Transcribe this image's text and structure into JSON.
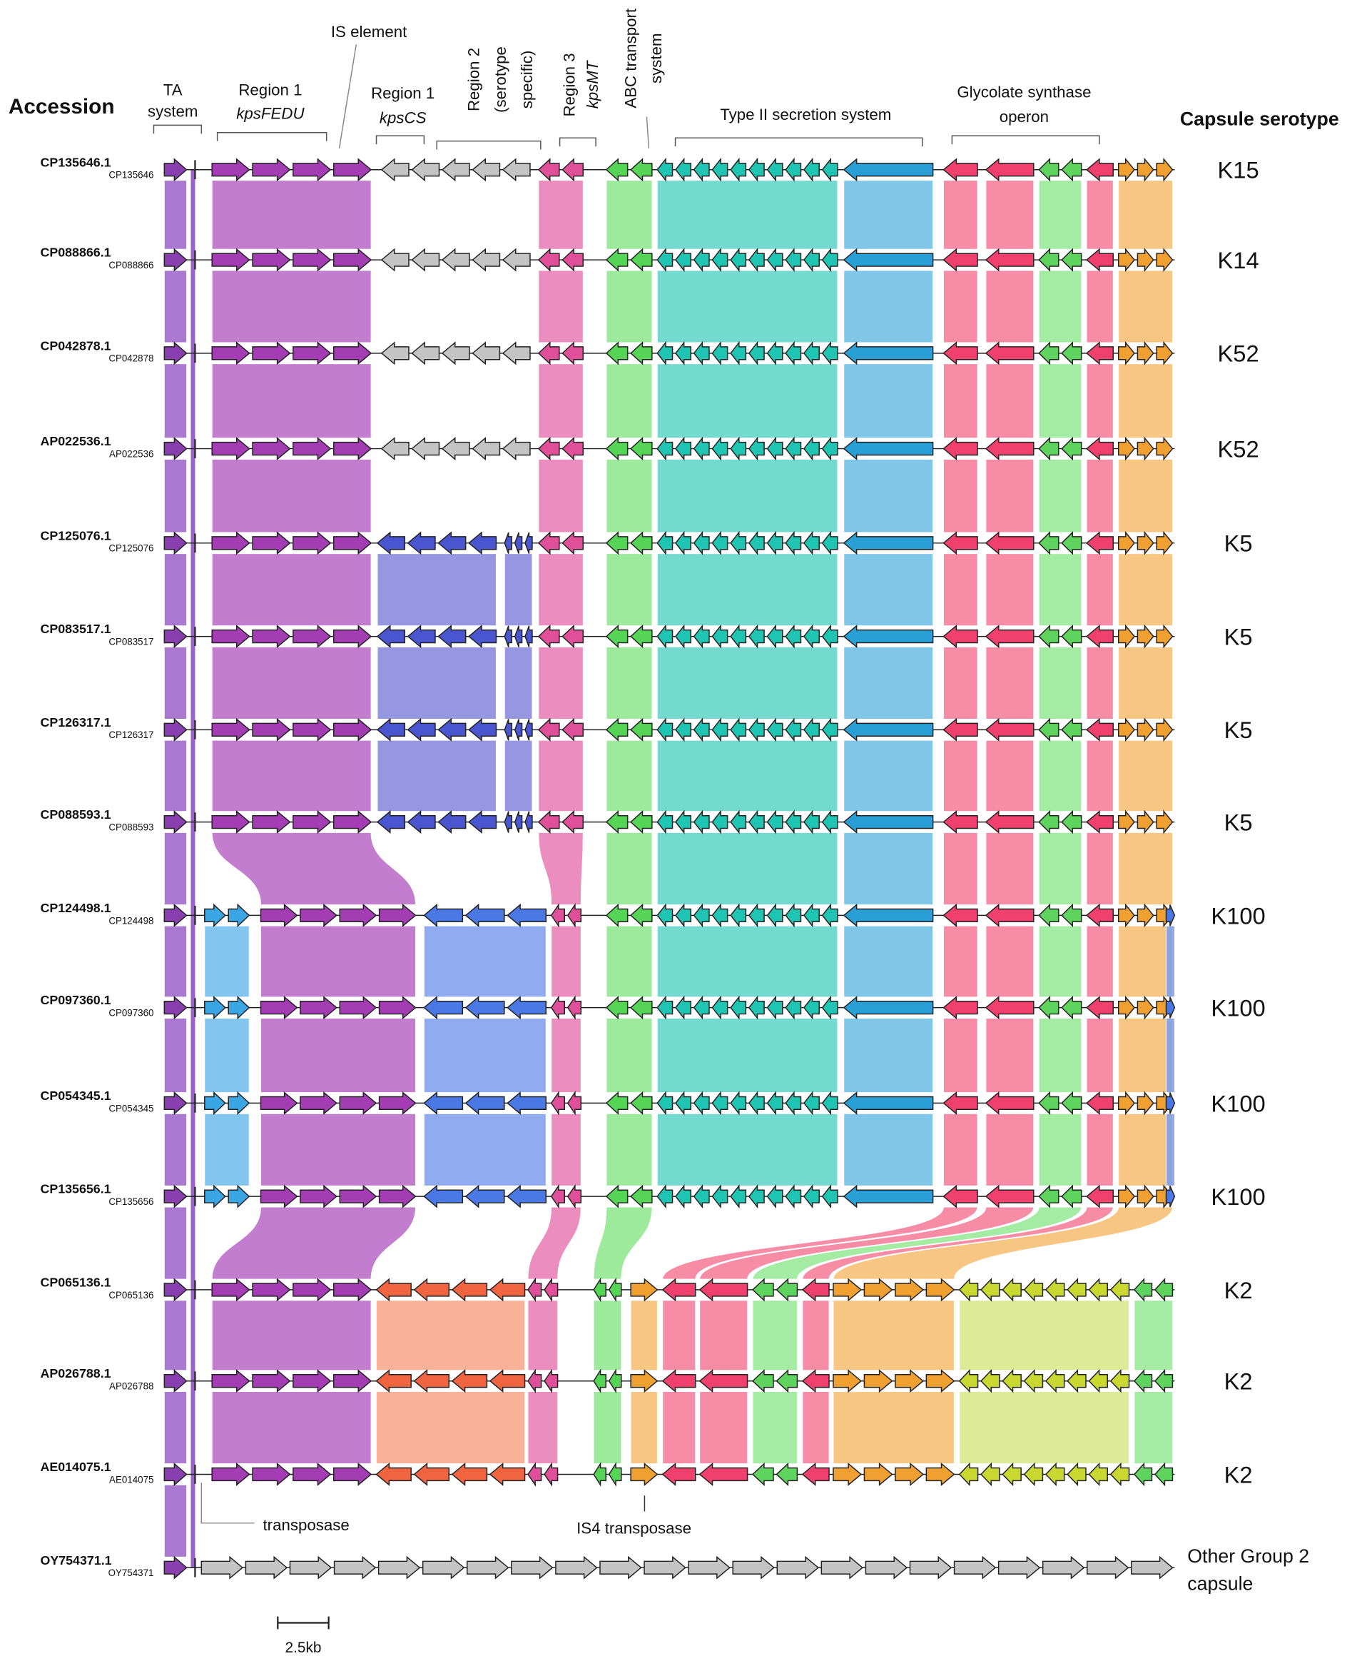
{
  "header": {
    "accession": "Accession",
    "serotype": "Capsule serotype"
  },
  "regions": [
    {
      "lines": [
        "TA",
        "system"
      ]
    },
    {
      "lines": [
        "Region 1",
        "kpsFEDU"
      ]
    },
    {
      "lines": [
        "IS element"
      ]
    },
    {
      "lines": [
        "Region 1",
        "kpsCS"
      ]
    },
    {
      "lines": [
        "Region 2",
        "(serotype",
        "specific)"
      ]
    },
    {
      "lines": [
        "Region 3",
        "kpsMT"
      ]
    },
    {
      "lines": [
        "ABC transport",
        "system"
      ]
    },
    {
      "lines": [
        "Type II secretion system"
      ]
    },
    {
      "lines": [
        "Glycolate synthase",
        "operon"
      ]
    }
  ],
  "rows": [
    {
      "accession": "CP135646.1",
      "id": "CP135646",
      "serotype": "K15"
    },
    {
      "accession": "CP088866.1",
      "id": "CP088866",
      "serotype": "K14"
    },
    {
      "accession": "CP042878.1",
      "id": "CP042878",
      "serotype": "K52"
    },
    {
      "accession": "AP022536.1",
      "id": "AP022536",
      "serotype": "K52"
    },
    {
      "accession": "CP125076.1",
      "id": "CP125076",
      "serotype": "K5"
    },
    {
      "accession": "CP083517.1",
      "id": "CP083517",
      "serotype": "K5"
    },
    {
      "accession": "CP126317.1",
      "id": "CP126317",
      "serotype": "K5"
    },
    {
      "accession": "CP088593.1",
      "id": "CP088593",
      "serotype": "K5"
    },
    {
      "accession": "CP124498.1",
      "id": "CP124498",
      "serotype": "K100"
    },
    {
      "accession": "CP097360.1",
      "id": "CP097360",
      "serotype": "K100"
    },
    {
      "accession": "CP054345.1",
      "id": "CP054345",
      "serotype": "K100"
    },
    {
      "accession": "CP135656.1",
      "id": "CP135656",
      "serotype": "K100"
    },
    {
      "accession": "CP065136.1",
      "id": "CP065136",
      "serotype": "K2"
    },
    {
      "accession": "AP026788.1",
      "id": "AP026788",
      "serotype": "K2"
    },
    {
      "accession": "AE014075.1",
      "id": "AE014075",
      "serotype": "K2"
    },
    {
      "accession": "OY754371.1",
      "id": "OY754371",
      "serotype": [
        "Other Group 2",
        "capsule"
      ]
    }
  ],
  "annotations": {
    "transposase": "transposase",
    "is4": "IS4 transposase",
    "scale": "2.5kb"
  }
}
